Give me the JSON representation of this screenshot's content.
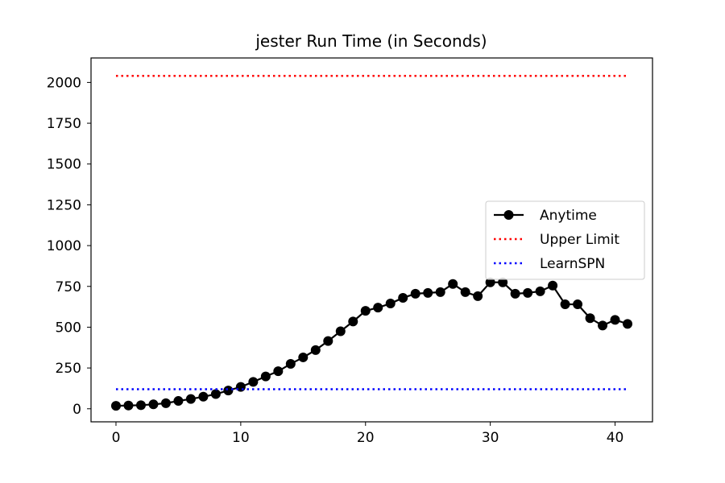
{
  "chart_data": {
    "type": "line",
    "title": "jester Run Time (in Seconds)",
    "xlabel": "",
    "ylabel": "",
    "xlim": [
      -2,
      43
    ],
    "ylim": [
      -80,
      2150
    ],
    "xticks": [
      0,
      10,
      20,
      30,
      40
    ],
    "yticks": [
      0,
      250,
      500,
      750,
      1000,
      1250,
      1500,
      1750,
      2000
    ],
    "grid": false,
    "legend_position": "right",
    "series": [
      {
        "name": "Anytime",
        "color": "#000000",
        "style": "solid",
        "marker": "circle",
        "x": [
          0,
          1,
          2,
          3,
          4,
          5,
          6,
          7,
          8,
          9,
          10,
          11,
          12,
          13,
          14,
          15,
          16,
          17,
          18,
          19,
          20,
          21,
          22,
          23,
          24,
          25,
          26,
          27,
          28,
          29,
          30,
          31,
          32,
          33,
          34,
          35,
          36,
          37,
          38,
          39,
          40,
          41
        ],
        "values": [
          18,
          20,
          22,
          27,
          34,
          48,
          60,
          74,
          90,
          112,
          134,
          165,
          198,
          230,
          275,
          315,
          360,
          415,
          475,
          535,
          600,
          620,
          645,
          680,
          705,
          710,
          715,
          765,
          715,
          690,
          775,
          775,
          705,
          710,
          720,
          755,
          640,
          640,
          555,
          510,
          545,
          520
        ]
      },
      {
        "name": "Upper Limit",
        "color": "#ff0000",
        "style": "dotted",
        "marker": "none",
        "x": [
          0,
          41
        ],
        "values": [
          2040,
          2040
        ]
      },
      {
        "name": "LearnSPN",
        "color": "#0000ff",
        "style": "dotted",
        "marker": "none",
        "x": [
          0,
          41
        ],
        "values": [
          120,
          120
        ]
      }
    ]
  }
}
